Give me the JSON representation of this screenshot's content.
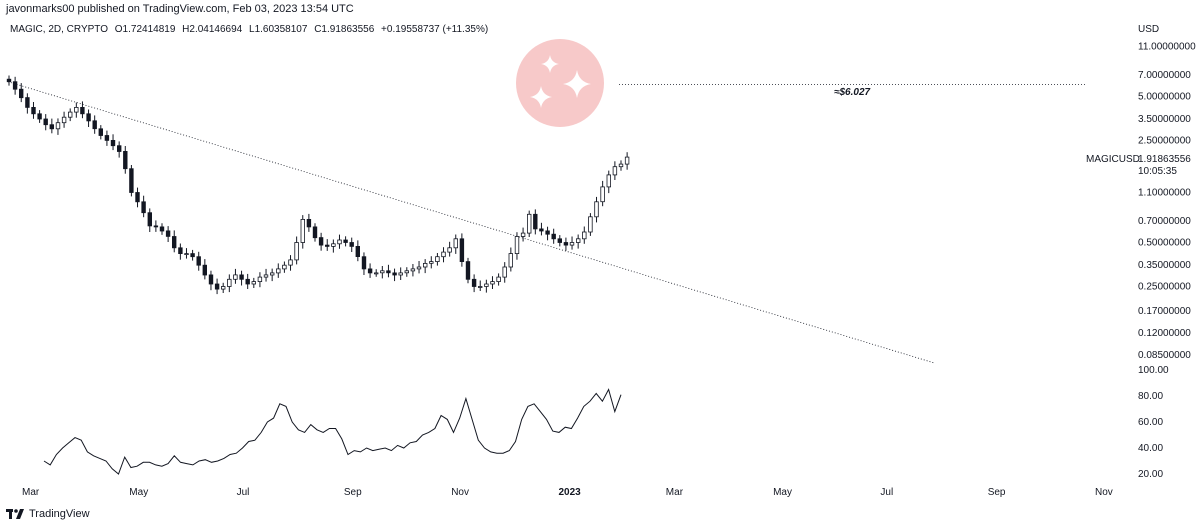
{
  "header": {
    "publish_text": "javonmarks00 published on TradingView.com, Feb 03, 2023 13:54 UTC"
  },
  "legend": {
    "symbol": "MAGIC, 2D, CRYPTO",
    "open": "O1.72414819",
    "high": "H2.04146694",
    "low": "L1.60358107",
    "close": "C1.91863556",
    "change": "+0.19558737 (+11.35%)"
  },
  "footer": {
    "brand": "TradingView"
  },
  "colors": {
    "candle": "#131722",
    "line": "#131722",
    "trend": "#131722",
    "logo_circle": "#f7c9c9",
    "logo_star": "#ffffff"
  },
  "chart_data": {
    "type": "candlestick",
    "currency_label": "USD",
    "scale": "log",
    "y_tick_labels": [
      "11.00000000",
      "7.00000000",
      "5.00000000",
      "3.50000000",
      "2.50000000",
      "1.10000000",
      "0.70000000",
      "0.50000000",
      "0.35000000",
      "0.25000000",
      "0.17000000",
      "0.12000000",
      "0.08500000"
    ],
    "price_label": {
      "symbol": "MAGICUSD",
      "price": "1.91863556",
      "countdown": "10:05:35"
    },
    "target_annotation": "≈$6.027",
    "target_value": 6.027,
    "x_tick_labels": [
      {
        "label": "Mar",
        "bold": false
      },
      {
        "label": "May",
        "bold": false
      },
      {
        "label": "Jul",
        "bold": false
      },
      {
        "label": "Sep",
        "bold": false
      },
      {
        "label": "Nov",
        "bold": false
      },
      {
        "label": "2023",
        "bold": true
      },
      {
        "label": "Mar",
        "bold": false
      },
      {
        "label": "May",
        "bold": false
      },
      {
        "label": "Jul",
        "bold": false
      },
      {
        "label": "Sep",
        "bold": false
      },
      {
        "label": "Nov",
        "bold": false
      }
    ],
    "close_series_approx": [
      6.3,
      5.6,
      4.9,
      4.2,
      3.8,
      3.5,
      3.2,
      3.0,
      3.3,
      3.6,
      3.9,
      4.2,
      3.8,
      3.4,
      3.0,
      2.7,
      2.5,
      2.3,
      2.1,
      1.6,
      1.1,
      0.95,
      0.8,
      0.65,
      0.64,
      0.6,
      0.55,
      0.46,
      0.42,
      0.42,
      0.4,
      0.35,
      0.3,
      0.26,
      0.24,
      0.25,
      0.28,
      0.3,
      0.28,
      0.26,
      0.27,
      0.29,
      0.3,
      0.31,
      0.33,
      0.35,
      0.38,
      0.5,
      0.72,
      0.64,
      0.54,
      0.48,
      0.47,
      0.49,
      0.52,
      0.5,
      0.47,
      0.4,
      0.33,
      0.31,
      0.31,
      0.32,
      0.31,
      0.3,
      0.31,
      0.32,
      0.33,
      0.34,
      0.36,
      0.37,
      0.4,
      0.43,
      0.46,
      0.53,
      0.37,
      0.28,
      0.25,
      0.25,
      0.26,
      0.27,
      0.29,
      0.34,
      0.42,
      0.55,
      0.58,
      0.78,
      0.62,
      0.6,
      0.57,
      0.53,
      0.5,
      0.48,
      0.5,
      0.53,
      0.59,
      0.75,
      0.95,
      1.2,
      1.45,
      1.65,
      1.72,
      1.92
    ],
    "trendline": {
      "start_value": 6.3,
      "end_value": 0.075
    },
    "oscillator": {
      "y_tick_labels": [
        "100.00",
        "80.00",
        "60.00",
        "40.00",
        "20.00"
      ],
      "range": [
        20,
        100
      ],
      "values": [
        30,
        27,
        35,
        40,
        44,
        48,
        46,
        37,
        34,
        32,
        30,
        24,
        20,
        33,
        25,
        26,
        29,
        29,
        27,
        26,
        28,
        34,
        29,
        28,
        27,
        30,
        31,
        29,
        30,
        32,
        35,
        36,
        40,
        45,
        46,
        52,
        60,
        63,
        74,
        72,
        60,
        54,
        52,
        58,
        54,
        52,
        55,
        55,
        47,
        35,
        38,
        37,
        40,
        38,
        39,
        40,
        38,
        42,
        40,
        44,
        45,
        50,
        52,
        55,
        65,
        62,
        52,
        63,
        78,
        62,
        46,
        40,
        37,
        36,
        36,
        38,
        45,
        62,
        72,
        74,
        68,
        62,
        53,
        52,
        56,
        55,
        63,
        72,
        76,
        82,
        76,
        85,
        68,
        81
      ]
    }
  }
}
